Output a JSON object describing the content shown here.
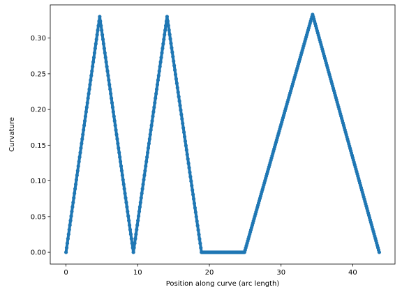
{
  "chart_data": {
    "type": "line",
    "title": "",
    "xlabel": "Position along curve (arc length)",
    "ylabel": "Curvature",
    "xlim": [
      -2.2,
      45.9
    ],
    "ylim": [
      -0.0165,
      0.3465
    ],
    "xticks": [
      0,
      10,
      20,
      30,
      40
    ],
    "yticks": [
      0.0,
      0.05,
      0.1,
      0.15,
      0.2,
      0.25,
      0.3
    ],
    "ytick_labels": [
      "0.00",
      "0.05",
      "0.10",
      "0.15",
      "0.20",
      "0.25",
      "0.30"
    ],
    "grid": false,
    "color": "#1f77b4",
    "marker": "circle",
    "series": [
      {
        "x": [
          0.0,
          4.7,
          9.4,
          14.1,
          18.9,
          24.9,
          34.4,
          43.7
        ],
        "y": [
          0.0,
          0.33,
          0.0,
          0.33,
          0.0,
          0.0,
          0.333,
          0.0
        ]
      }
    ]
  }
}
